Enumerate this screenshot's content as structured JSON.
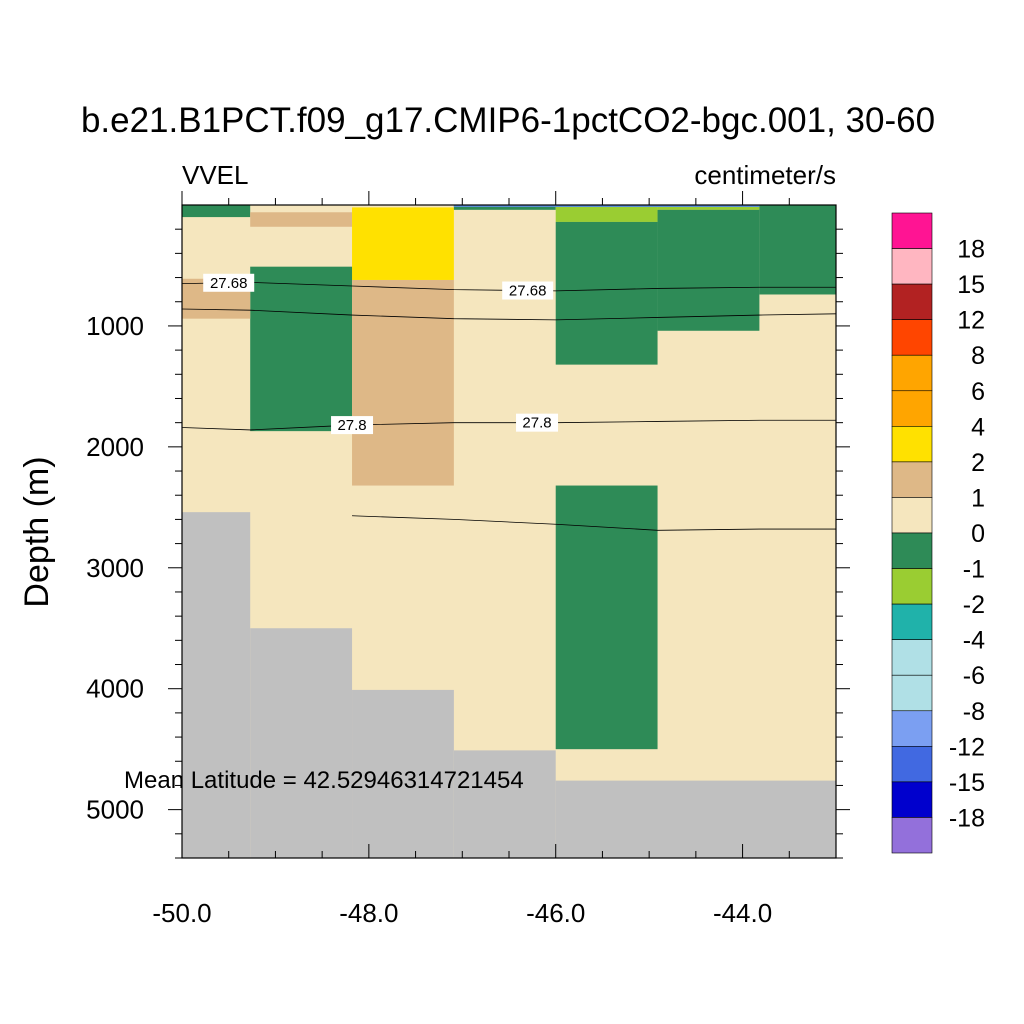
{
  "title": "b.e21.B1PCT.f09_g17.CMIP6-1pctCO2-bgc.001, 30-60",
  "left_subtitle": "VVEL",
  "right_subtitle": "centimeter/s",
  "annotation": "Mean Latitude = 42.52946314721454",
  "chart_data": {
    "type": "heatmap",
    "xlabel": "",
    "ylabel": "Depth (m)",
    "xlim": [
      -50.0,
      -43.0
    ],
    "ylim": [
      5400,
      0
    ],
    "x_ticks": [
      -50.0,
      -48.0,
      -46.0,
      -44.0
    ],
    "x_tick_labels": [
      "-50.0",
      "-48.0",
      "-46.0",
      "-44.0"
    ],
    "y_ticks": [
      1000,
      2000,
      3000,
      4000,
      5000
    ],
    "y_tick_labels": [
      "1000",
      "2000",
      "3000",
      "4000",
      "5000"
    ],
    "colorbar": {
      "labels": [
        "18",
        "15",
        "12",
        "8",
        "6",
        "4",
        "2",
        "1",
        "0",
        "-1",
        "-2",
        "-4",
        "-6",
        "-8",
        "-12",
        "-15",
        "-18"
      ],
      "colors": [
        "#ff1493",
        "#ffb6c1",
        "#b22222",
        "#ff4500",
        "#ffa500",
        "#ffa500",
        "#ffe100",
        "#deb887",
        "#f5e6be",
        "#2e8b57",
        "#9acd32",
        "#20b2aa",
        "#b0e0e6",
        "#b0e0e6",
        "#7b9ff2",
        "#4169e1",
        "#0000cd",
        "#9370db"
      ]
    },
    "land_color": "#c0c0c0",
    "background_value_color": "#f5e6be",
    "cells": [
      {
        "x": [
          -50.0,
          -49.27
        ],
        "y": [
          0,
          100
        ],
        "color": "#2e8b57"
      },
      {
        "x": [
          -49.27,
          -48.18
        ],
        "y": [
          60,
          180
        ],
        "color": "#deb887"
      },
      {
        "x": [
          -48.18,
          -47.09
        ],
        "y": [
          20,
          620
        ],
        "color": "#ffe100"
      },
      {
        "x": [
          -47.09,
          -46.0
        ],
        "y": [
          0,
          40
        ],
        "color": "#2e8b57"
      },
      {
        "x": [
          -46.0,
          -44.91
        ],
        "y": [
          10,
          140
        ],
        "color": "#9acd32"
      },
      {
        "x": [
          -44.91,
          -43.82
        ],
        "y": [
          10,
          40
        ],
        "color": "#9acd32"
      },
      {
        "x": [
          -46.0,
          -44.91
        ],
        "y": [
          140,
          1320
        ],
        "color": "#2e8b57"
      },
      {
        "x": [
          -44.91,
          -43.82
        ],
        "y": [
          40,
          1040
        ],
        "color": "#2e8b57"
      },
      {
        "x": [
          -43.82,
          -43.0
        ],
        "y": [
          0,
          740
        ],
        "color": "#2e8b57"
      },
      {
        "x": [
          -49.27,
          -48.18
        ],
        "y": [
          510,
          1870
        ],
        "color": "#2e8b57"
      },
      {
        "x": [
          -50.0,
          -49.27
        ],
        "y": [
          610,
          940
        ],
        "color": "#deb887"
      },
      {
        "x": [
          -48.18,
          -47.09
        ],
        "y": [
          620,
          2320
        ],
        "color": "#deb887"
      },
      {
        "x": [
          -46.0,
          -44.91
        ],
        "y": [
          2320,
          4500
        ],
        "color": "#2e8b57"
      }
    ],
    "land": [
      {
        "x": [
          -50.0,
          -49.27
        ],
        "y": [
          2540,
          5400
        ]
      },
      {
        "x": [
          -49.27,
          -48.18
        ],
        "y": [
          3500,
          5400
        ]
      },
      {
        "x": [
          -48.18,
          -47.09
        ],
        "y": [
          4010,
          5400
        ]
      },
      {
        "x": [
          -47.09,
          -46.0
        ],
        "y": [
          4510,
          5400
        ]
      },
      {
        "x": [
          -46.0,
          -43.0
        ],
        "y": [
          4760,
          5400
        ]
      }
    ],
    "contours": [
      {
        "label": "27.68",
        "x": [
          -50.0,
          -49.27,
          -48.18,
          -47.09,
          -46.0,
          -44.91,
          -43.82,
          -43.0
        ],
        "y": [
          650,
          640,
          670,
          700,
          710,
          690,
          680,
          680
        ],
        "label_x": [
          -49.5,
          -46.3
        ]
      },
      {
        "label": "",
        "x": [
          -50.0,
          -49.27,
          -48.18,
          -47.09,
          -46.0,
          -44.91,
          -43.82,
          -43.0
        ],
        "y": [
          860,
          870,
          910,
          940,
          950,
          930,
          910,
          900
        ],
        "label_x": []
      },
      {
        "label": "27.8",
        "x": [
          -50.0,
          -49.27,
          -48.18,
          -47.09,
          -46.0,
          -44.91,
          -43.82,
          -43.0
        ],
        "y": [
          1840,
          1860,
          1820,
          1800,
          1800,
          1790,
          1780,
          1780
        ],
        "label_x": [
          -48.18,
          -46.2
        ]
      },
      {
        "label": "",
        "x": [
          -48.18,
          -47.09,
          -46.0,
          -44.91,
          -43.82,
          -43.0
        ],
        "y": [
          2570,
          2600,
          2640,
          2690,
          2680,
          2680
        ],
        "label_x": []
      }
    ]
  }
}
